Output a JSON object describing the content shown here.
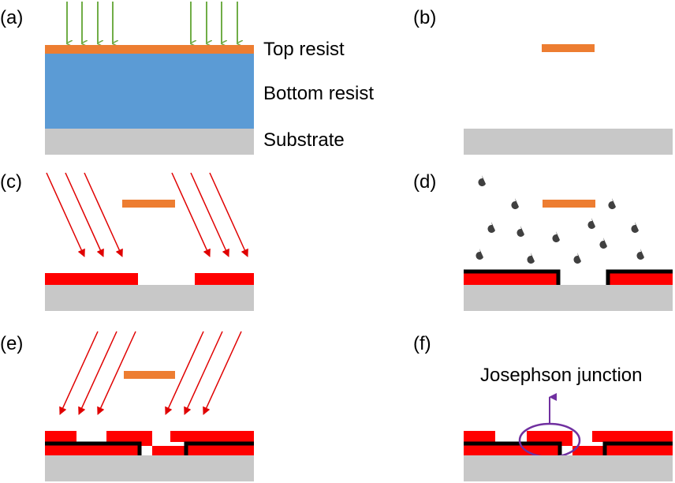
{
  "panels": {
    "a": {
      "tag": "(a)"
    },
    "b": {
      "tag": "(b)"
    },
    "c": {
      "tag": "(c)"
    },
    "d": {
      "tag": "(d)"
    },
    "e": {
      "tag": "(e)"
    },
    "f": {
      "tag": "(f)"
    }
  },
  "layers": {
    "top_resist": "Top resist",
    "bottom_resist": "Bottom resist",
    "substrate": "Substrate"
  },
  "annotation": {
    "junction": "Josephson junction"
  },
  "colors": {
    "substrate": "#c8c8c8",
    "bottom_resist": "#5b9bd5",
    "top_resist": "#ed7d31",
    "deposited_metal": "#ff0000",
    "oxide_layer": "#000000",
    "uv_arrow": "#70ad47",
    "evaporation_arrow": "#e00000",
    "particle": "#404040",
    "junction_marker": "#7030a0"
  }
}
